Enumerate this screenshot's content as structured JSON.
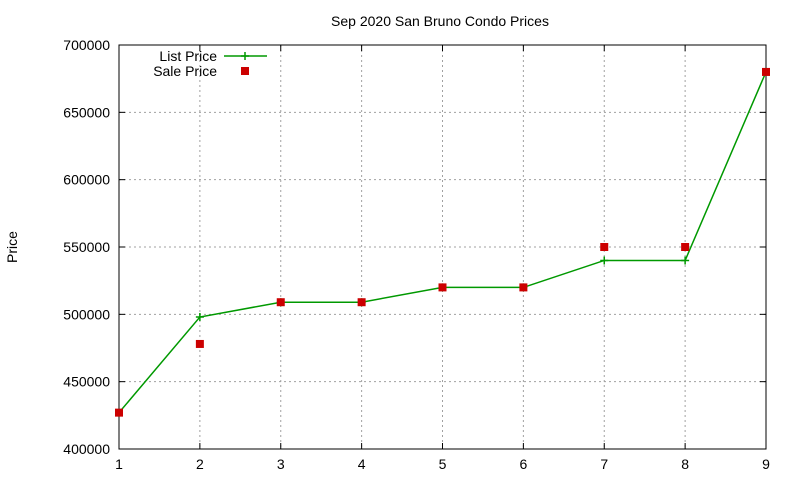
{
  "chart_data": {
    "type": "line",
    "title": "Sep 2020 San Bruno Condo Prices",
    "xlabel": "",
    "ylabel": "Price",
    "x": [
      1,
      2,
      3,
      4,
      5,
      6,
      7,
      8,
      9
    ],
    "xlim": [
      1,
      9
    ],
    "ylim": [
      400000,
      700000
    ],
    "x_ticks": [
      1,
      2,
      3,
      4,
      5,
      6,
      7,
      8,
      9
    ],
    "y_ticks": [
      400000,
      450000,
      500000,
      550000,
      600000,
      650000,
      700000
    ],
    "grid": true,
    "legend_position": "top-left",
    "series": [
      {
        "name": "List Price",
        "style": "line-plus",
        "color": "#009900",
        "values": [
          427000,
          498000,
          509000,
          509000,
          520000,
          520000,
          540000,
          540000,
          680000
        ]
      },
      {
        "name": "Sale Price",
        "style": "square-points",
        "color": "#cc0000",
        "values": [
          427000,
          478000,
          509000,
          509000,
          520000,
          520000,
          550000,
          550000,
          680000
        ]
      }
    ]
  }
}
